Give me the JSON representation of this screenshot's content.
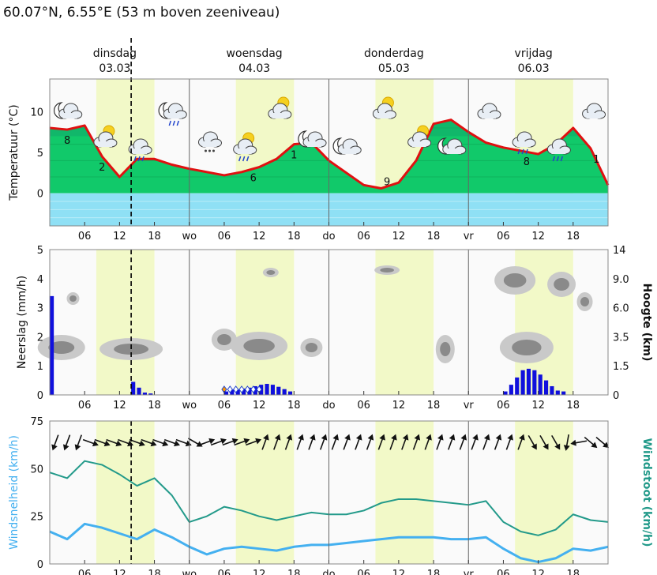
{
  "location": "60.07°N, 6.55°E (53 m boven zeeniveau)",
  "days": [
    {
      "name": "dinsdag",
      "date": "03.03"
    },
    {
      "name": "woensdag",
      "date": "04.03"
    },
    {
      "name": "donderdag",
      "date": "05.03"
    },
    {
      "name": "vrijdag",
      "date": "06.03"
    }
  ],
  "x_tick_labels": [
    "06",
    "12",
    "18",
    "wo",
    "06",
    "12",
    "18",
    "do",
    "06",
    "12",
    "18",
    "vr",
    "06",
    "12",
    "18"
  ],
  "colors": {
    "temp_line": "#e01010",
    "warm_fill": "#11c96a",
    "cold_fill": "#8fe0f5",
    "daylight": "#f2f9c8",
    "precip_bar": "#1010dd",
    "wind_speed": "#44b0f0",
    "wind_gust": "#239a8a"
  },
  "chart_data": [
    {
      "type": "area",
      "ylabel": "Temperatuur (°C)",
      "yticks": [
        0,
        5,
        10
      ],
      "ylim": [
        -4,
        14
      ],
      "x": [
        0,
        3,
        6,
        9,
        12,
        15,
        18,
        21,
        24,
        27,
        30,
        33,
        36,
        39,
        42,
        45,
        48,
        51,
        54,
        57,
        60,
        63,
        66,
        69,
        72,
        75,
        78,
        81,
        84,
        87,
        90,
        93,
        96
      ],
      "x_unit": "hours since 03.03 00:00",
      "values": [
        8,
        7.8,
        8.3,
        4.5,
        2,
        4.2,
        4.2,
        3.5,
        3,
        2.6,
        2.2,
        2.6,
        3.2,
        4.2,
        6,
        6.2,
        4,
        2.5,
        1,
        0.6,
        1.3,
        4,
        8.5,
        9,
        7.5,
        6.2,
        5.6,
        5.2,
        4.8,
        6,
        8,
        5.5,
        1
      ],
      "value_labels": [
        {
          "x": 3,
          "text": "8"
        },
        {
          "x": 9,
          "text": "2"
        },
        {
          "x": 35,
          "text": "6"
        },
        {
          "x": 42,
          "text": "1"
        },
        {
          "x": 58,
          "text": "9"
        },
        {
          "x": 82,
          "text": "8"
        },
        {
          "x": 94,
          "text": "1"
        }
      ],
      "weather_symbols": [
        {
          "x": 2,
          "icon": "moon-cloud-icon"
        },
        {
          "x": 8,
          "icon": "sun-cloud-icon"
        },
        {
          "x": 14,
          "icon": "rain-cloud-icon"
        },
        {
          "x": 20,
          "icon": "moon-cloud-rain-icon"
        },
        {
          "x": 26,
          "icon": "snow-cloud-icon"
        },
        {
          "x": 32,
          "icon": "sun-cloud-rain-icon"
        },
        {
          "x": 38,
          "icon": "sun-cloud-icon"
        },
        {
          "x": 44,
          "icon": "moon-cloud-icon"
        },
        {
          "x": 50,
          "icon": "moon-cloud-icon"
        },
        {
          "x": 56,
          "icon": "sun-cloud-icon"
        },
        {
          "x": 62,
          "icon": "sun-cloud-icon"
        },
        {
          "x": 68,
          "icon": "moon-cloud-icon"
        },
        {
          "x": 74,
          "icon": "cloud-icon"
        },
        {
          "x": 80,
          "icon": "rain-cloud-icon"
        },
        {
          "x": 86,
          "icon": "cloud-rain-icon"
        },
        {
          "x": 92,
          "icon": "cloud-icon"
        }
      ]
    },
    {
      "type": "bar",
      "ylabel": "Neerslag (mm/h)",
      "ylabel_right": "Hoogte (km)",
      "yticks": [
        0,
        1,
        2,
        3,
        4,
        5
      ],
      "yticks_right": [
        "0",
        "1.5",
        "3.5",
        "6.0",
        "9.0",
        "14"
      ],
      "ylim": [
        0,
        5
      ],
      "x": [
        0,
        14,
        15,
        16,
        17,
        30,
        31,
        32,
        33,
        34,
        35,
        36,
        37,
        38,
        39,
        40,
        41,
        42,
        78,
        79,
        80,
        81,
        82,
        83,
        84,
        85,
        86,
        87,
        88
      ],
      "values": [
        3.4,
        0.45,
        0.25,
        0.08,
        0.05,
        0.12,
        0.18,
        0.18,
        0.22,
        0.25,
        0.3,
        0.35,
        0.38,
        0.35,
        0.28,
        0.2,
        0.12,
        0,
        0.12,
        0.35,
        0.6,
        0.85,
        0.9,
        0.85,
        0.7,
        0.5,
        0.3,
        0.15,
        0.12
      ],
      "snow_markers_x": [
        30,
        31,
        32,
        33,
        34,
        35,
        36
      ]
    },
    {
      "type": "line",
      "ylabel": "Windsnelheid (km/h)",
      "ylabel_right": "Windstoot (km/h)",
      "yticks": [
        0,
        25,
        50,
        75
      ],
      "ylim": [
        0,
        75
      ],
      "x": [
        0,
        3,
        6,
        9,
        12,
        15,
        18,
        21,
        24,
        27,
        30,
        33,
        36,
        39,
        42,
        45,
        48,
        51,
        54,
        57,
        60,
        63,
        66,
        69,
        72,
        75,
        78,
        81,
        84,
        87,
        90,
        93,
        96
      ],
      "series": [
        {
          "values": [
            48,
            45,
            54,
            52,
            47,
            41,
            45,
            36,
            22,
            25,
            30,
            28,
            25,
            23,
            25,
            27,
            26,
            26,
            28,
            32,
            34,
            34,
            33,
            32,
            31,
            33,
            22,
            17,
            15,
            18,
            26,
            23,
            22
          ]
        },
        {
          "values": [
            17,
            13,
            21,
            19,
            16,
            13,
            18,
            14,
            9,
            5,
            8,
            9,
            8,
            7,
            9,
            10,
            10,
            11,
            12,
            13,
            14,
            14,
            14,
            13,
            13,
            14,
            8,
            3,
            1,
            3,
            8,
            7,
            9
          ]
        }
      ],
      "wind_arrow_direction_deg": [
        200,
        200,
        200,
        110,
        110,
        110,
        110,
        110,
        110,
        110,
        110,
        110,
        120,
        70,
        70,
        70,
        70,
        70,
        20,
        20,
        20,
        20,
        20,
        20,
        20,
        20,
        20,
        20,
        20,
        20,
        20,
        20,
        20,
        20,
        20,
        20,
        20,
        20,
        20,
        20,
        20,
        150,
        150,
        150,
        190,
        260,
        130,
        130
      ]
    }
  ]
}
